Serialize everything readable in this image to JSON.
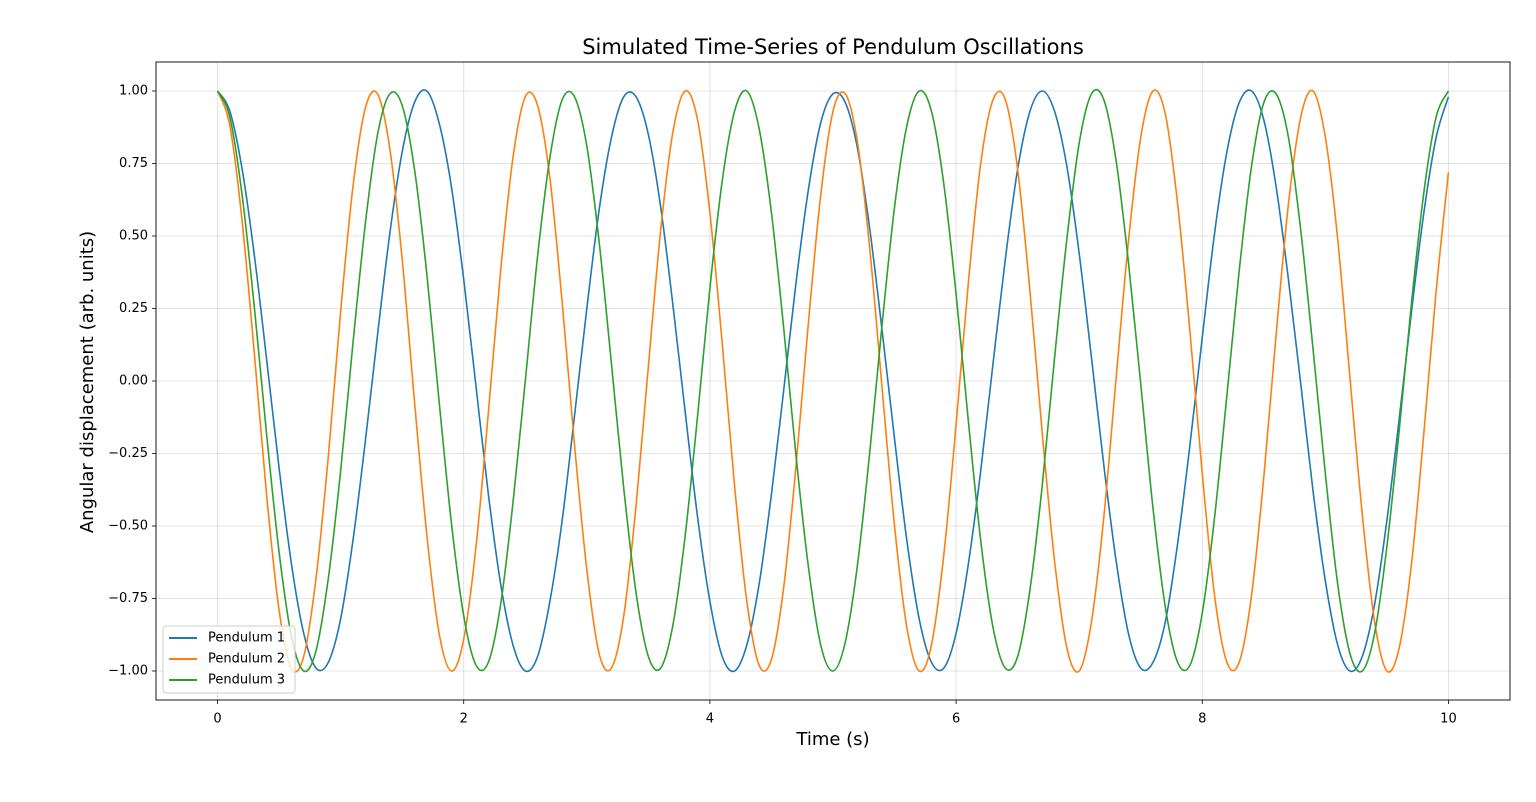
{
  "chart_data": {
    "type": "line",
    "title": "Simulated Time-Series of Pendulum Oscillations",
    "xlabel": "Time (s)",
    "ylabel": "Angular displacement (arb. units)",
    "xlim": [
      -0.5,
      10.5
    ],
    "ylim": [
      -1.1,
      1.1
    ],
    "xticks": [
      0,
      2,
      4,
      6,
      8,
      10
    ],
    "yticks": [
      {
        "value": -1,
        "label": "−1.00"
      },
      {
        "value": -0.75,
        "label": "−0.75"
      },
      {
        "value": -0.5,
        "label": "−0.50"
      },
      {
        "value": -0.25,
        "label": "−0.25"
      },
      {
        "value": 0,
        "label": "0.00"
      },
      {
        "value": 0.25,
        "label": "0.25"
      },
      {
        "value": 0.5,
        "label": "0.50"
      },
      {
        "value": 0.75,
        "label": "0.75"
      },
      {
        "value": 1,
        "label": "1.00"
      }
    ],
    "grid": true,
    "legend": "lower left",
    "x": [
      0,
      0.1,
      0.2,
      0.3,
      0.4,
      0.5,
      0.6,
      0.7,
      0.8,
      0.9,
      1,
      1.1,
      1.2,
      1.3,
      1.4,
      1.5,
      1.6,
      1.7,
      1.8,
      1.9,
      2,
      2.1,
      2.2,
      2.3,
      2.4,
      2.5,
      2.6,
      2.7,
      2.8,
      2.9,
      3,
      3.1,
      3.2,
      3.3,
      3.4,
      3.5,
      3.6,
      3.7,
      3.8,
      3.9,
      4,
      4.1,
      4.2,
      4.3,
      4.4,
      4.5,
      4.6,
      4.7,
      4.8,
      4.9,
      5,
      5.1,
      5.2,
      5.3,
      5.4,
      5.5,
      5.6,
      5.7,
      5.8,
      5.9,
      6,
      6.1,
      6.2,
      6.3,
      6.4,
      6.5,
      6.6,
      6.7,
      6.8,
      6.9,
      7,
      7.1,
      7.2,
      7.3,
      7.4,
      7.5,
      7.6,
      7.7,
      7.8,
      7.9,
      8,
      8.1,
      8.2,
      8.3,
      8.4,
      8.5,
      8.6,
      8.7,
      8.8,
      8.9,
      9,
      9.1,
      9.2,
      9.3,
      9.4,
      9.5,
      9.6,
      9.7,
      9.8,
      9.9,
      10
    ],
    "series": [
      {
        "name": "Pendulum 1",
        "color": "#1f77b4",
        "values": [
          1,
          0.93,
          0.73,
          0.43,
          0.07,
          -0.3,
          -0.63,
          -0.87,
          -0.99,
          -0.97,
          -0.82,
          -0.55,
          -0.21,
          0.16,
          0.51,
          0.79,
          0.96,
          1.0,
          0.89,
          0.67,
          0.35,
          -0.02,
          -0.39,
          -0.7,
          -0.91,
          -1.0,
          -0.95,
          -0.76,
          -0.48,
          -0.12,
          0.25,
          0.59,
          0.84,
          0.98,
          0.98,
          0.85,
          0.6,
          0.26,
          -0.11,
          -0.47,
          -0.76,
          -0.95,
          -1.0,
          -0.91,
          -0.7,
          -0.39,
          -0.03,
          0.34,
          0.66,
          0.89,
          0.99,
          0.96,
          0.8,
          0.52,
          0.17,
          -0.2,
          -0.55,
          -0.82,
          -0.97,
          -0.99,
          -0.87,
          -0.63,
          -0.31,
          0.06,
          0.42,
          0.73,
          0.93,
          1.0,
          0.93,
          0.74,
          0.44,
          0.08,
          -0.29,
          -0.62,
          -0.87,
          -0.99,
          -0.97,
          -0.83,
          -0.56,
          -0.22,
          0.15,
          0.51,
          0.79,
          0.96,
          1.0,
          0.9,
          0.67,
          0.35,
          -0.01,
          -0.38,
          -0.69,
          -0.91,
          -1.0,
          -0.95,
          -0.77,
          -0.48,
          -0.13,
          0.24,
          0.58,
          0.84,
          0.98
        ]
      },
      {
        "name": "Pendulum 2",
        "color": "#ff7f0e",
        "values": [
          1,
          0.88,
          0.55,
          0.09,
          -0.4,
          -0.79,
          -0.99,
          -0.95,
          -0.68,
          -0.26,
          0.24,
          0.67,
          0.94,
          0.99,
          0.8,
          0.42,
          -0.07,
          -0.53,
          -0.87,
          -1.0,
          -0.89,
          -0.57,
          -0.11,
          0.38,
          0.77,
          0.98,
          0.95,
          0.7,
          0.27,
          -0.22,
          -0.65,
          -0.94,
          -0.99,
          -0.81,
          -0.43,
          0.05,
          0.52,
          0.86,
          1.0,
          0.9,
          0.58,
          0.13,
          -0.36,
          -0.76,
          -0.98,
          -0.96,
          -0.71,
          -0.29,
          0.2,
          0.64,
          0.93,
          0.99,
          0.82,
          0.45,
          -0.03,
          -0.5,
          -0.85,
          -1.0,
          -0.91,
          -0.6,
          -0.15,
          0.34,
          0.75,
          0.97,
          0.97,
          0.73,
          0.31,
          -0.18,
          -0.62,
          -0.92,
          -1.0,
          -0.83,
          -0.47,
          0.01,
          0.48,
          0.84,
          1.0,
          0.92,
          0.61,
          0.17,
          -0.32,
          -0.74,
          -0.97,
          -0.97,
          -0.74,
          -0.33,
          0.16,
          0.61,
          0.91,
          1.0,
          0.84,
          0.49,
          0.01,
          -0.46,
          -0.83,
          -1.0,
          -0.92,
          -0.63,
          -0.18,
          0.31,
          0.72
        ]
      },
      {
        "name": "Pendulum 3",
        "color": "#2ca02c",
        "values": [
          1,
          0.91,
          0.64,
          0.25,
          -0.19,
          -0.59,
          -0.88,
          -1.0,
          -0.93,
          -0.68,
          -0.31,
          0.13,
          0.54,
          0.85,
          0.99,
          0.95,
          0.73,
          0.37,
          -0.07,
          -0.49,
          -0.81,
          -0.98,
          -0.97,
          -0.77,
          -0.42,
          0.0,
          0.43,
          0.77,
          0.97,
          0.98,
          0.81,
          0.48,
          0.06,
          -0.37,
          -0.73,
          -0.95,
          -0.99,
          -0.84,
          -0.53,
          -0.12,
          0.32,
          0.69,
          0.93,
          1.0,
          0.87,
          0.58,
          0.18,
          -0.26,
          -0.64,
          -0.91,
          -1.0,
          -0.9,
          -0.63,
          -0.24,
          0.2,
          0.6,
          0.88,
          1.0,
          0.93,
          0.68,
          0.3,
          -0.14,
          -0.55,
          -0.85,
          -0.99,
          -0.95,
          -0.72,
          -0.36,
          0.08,
          0.49,
          0.82,
          0.99,
          0.97,
          0.76,
          0.41,
          -0.01,
          -0.44,
          -0.78,
          -0.97,
          -0.98,
          -0.8,
          -0.47,
          -0.05,
          0.38,
          0.74,
          0.96,
          0.99,
          0.84,
          0.52,
          0.11,
          -0.32,
          -0.7,
          -0.94,
          -1.0,
          -0.87,
          -0.57,
          -0.17,
          0.27,
          0.65,
          0.91,
          1.0
        ]
      }
    ]
  }
}
